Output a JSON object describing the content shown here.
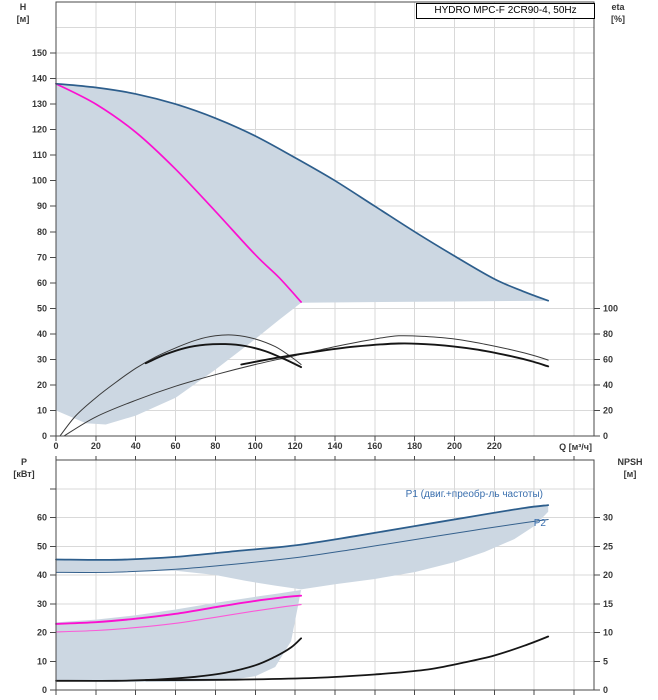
{
  "colors": {
    "envelope_fill": "#ccd7e2",
    "max_curve_blue": "#2d5e8c",
    "thin_blue": "#35618d",
    "magenta_thick": "#fb10d1",
    "magenta_thin": "#fb5ad8",
    "black_thick": "#161616",
    "black_thin": "#3a3a3a",
    "annotation_blue": "#3a6fae",
    "grid": "#d9d9d9",
    "axis": "#4a4a4a"
  },
  "chart_data": [
    {
      "id": "hq_chart",
      "type": "line",
      "title": "HYDRO MPC-F 2CR90-4, 50Hz",
      "x_axis": {
        "label": "Q [м³/ч]",
        "min": 0,
        "max": 270,
        "grid_step": 20,
        "ticks": [
          0,
          20,
          40,
          60,
          80,
          100,
          120,
          140,
          160,
          180,
          200,
          220
        ],
        "show_labels": true
      },
      "y_left": {
        "name": "H",
        "unit": "[м]",
        "min": 0,
        "max": 170,
        "grid_step": 10,
        "ticks": [
          0,
          10,
          20,
          30,
          40,
          50,
          60,
          70,
          80,
          90,
          100,
          110,
          120,
          130,
          140,
          150
        ],
        "tick_label_max": 150
      },
      "y_right": {
        "name": "eta",
        "unit": "[%]",
        "ticks": [
          0,
          20,
          40,
          60,
          80,
          100
        ]
      },
      "right_to_left": 0.5,
      "region_color": "#ccd7e2",
      "regions": [
        {
          "name": "operating-envelope",
          "points": [
            [
              0,
              138
            ],
            [
              20,
              136.5
            ],
            [
              40,
              134
            ],
            [
              60,
              130
            ],
            [
              80,
              124.5
            ],
            [
              100,
              117.5
            ],
            [
              120,
              109
            ],
            [
              140,
              100
            ],
            [
              160,
              90
            ],
            [
              180,
              80
            ],
            [
              200,
              70.5
            ],
            [
              220,
              61.5
            ],
            [
              235,
              56.5
            ],
            [
              247,
              53
            ],
            [
              200,
              52.7
            ],
            [
              150,
              52.4
            ],
            [
              123,
              52.2
            ],
            [
              112,
              45.5
            ],
            [
              100,
              38
            ],
            [
              80,
              26
            ],
            [
              60,
              15
            ],
            [
              40,
              8
            ],
            [
              25,
              4.5
            ],
            [
              15,
              5
            ],
            [
              0,
              10
            ]
          ]
        }
      ],
      "series": [
        {
          "name": "eta-1pump-thin",
          "axis": "right",
          "color": "#3a3a3a",
          "width": 1,
          "points": [
            [
              2,
              0
            ],
            [
              10,
              16
            ],
            [
              20,
              30
            ],
            [
              30,
              42
            ],
            [
              40,
              53
            ],
            [
              50,
              62
            ],
            [
              60,
              69
            ],
            [
              70,
              75
            ],
            [
              80,
              78.5
            ],
            [
              90,
              79
            ],
            [
              100,
              76
            ],
            [
              110,
              70
            ],
            [
              118,
              62
            ],
            [
              123,
              56
            ]
          ]
        },
        {
          "name": "eta-2pumps-thin",
          "axis": "right",
          "color": "#3a3a3a",
          "width": 1,
          "points": [
            [
              4,
              0
            ],
            [
              20,
              15
            ],
            [
              40,
              28
            ],
            [
              60,
              39
            ],
            [
              80,
              48
            ],
            [
              100,
              56
            ],
            [
              120,
              63
            ],
            [
              140,
              70
            ],
            [
              160,
              76
            ],
            [
              172,
              78.5
            ],
            [
              185,
              78
            ],
            [
              200,
              76
            ],
            [
              215,
              72
            ],
            [
              230,
              67
            ],
            [
              240,
              63
            ],
            [
              247,
              59.5
            ]
          ]
        },
        {
          "name": "eta-1pump-thick",
          "axis": "right",
          "color": "#161616",
          "width": 1.9,
          "points": [
            [
              45,
              57
            ],
            [
              55,
              64
            ],
            [
              65,
              69
            ],
            [
              75,
              71.5
            ],
            [
              85,
              72
            ],
            [
              95,
              70.5
            ],
            [
              105,
              66.5
            ],
            [
              115,
              60
            ],
            [
              123,
              54
            ]
          ]
        },
        {
          "name": "eta-2pumps-thick",
          "axis": "right",
          "color": "#161616",
          "width": 1.9,
          "points": [
            [
              93,
              56
            ],
            [
              110,
              61
            ],
            [
              130,
              66
            ],
            [
              150,
              70
            ],
            [
              172,
              72.5
            ],
            [
              190,
              71.5
            ],
            [
              210,
              68
            ],
            [
              230,
              62
            ],
            [
              240,
              58
            ],
            [
              247,
              54.5
            ]
          ]
        },
        {
          "name": "single-pump-max-speed-curve",
          "axis": "left",
          "color": "#fb10d1",
          "width": 1.7,
          "points": [
            [
              0,
              138
            ],
            [
              20,
              130
            ],
            [
              40,
              119
            ],
            [
              60,
              104.5
            ],
            [
              80,
              88
            ],
            [
              100,
              71
            ],
            [
              112,
              62
            ],
            [
              123,
              52.5
            ]
          ]
        },
        {
          "name": "max-speed-curve-2pumps",
          "axis": "left",
          "color": "#2d5e8c",
          "width": 1.7,
          "points": [
            [
              0,
              138
            ],
            [
              20,
              136.5
            ],
            [
              40,
              134
            ],
            [
              60,
              130
            ],
            [
              80,
              124.5
            ],
            [
              100,
              117.5
            ],
            [
              120,
              109
            ],
            [
              140,
              100
            ],
            [
              160,
              90
            ],
            [
              180,
              80
            ],
            [
              200,
              70.5
            ],
            [
              220,
              61.5
            ],
            [
              235,
              56.5
            ],
            [
              247,
              53
            ]
          ]
        }
      ]
    },
    {
      "id": "power_chart",
      "type": "line",
      "x_axis": {
        "label": "",
        "min": 0,
        "max": 270,
        "grid_step": 20,
        "ticks": [
          0,
          20,
          40,
          60,
          80,
          100,
          120,
          140,
          160,
          180,
          200,
          220,
          240,
          260
        ],
        "show_labels": false
      },
      "y_left": {
        "name": "P",
        "unit": "[кВт]",
        "min": 0,
        "max": 80,
        "grid_step": 10,
        "ticks": [
          0,
          10,
          20,
          30,
          40,
          50,
          60,
          70
        ],
        "tick_label_max": 60
      },
      "y_right": {
        "name": "NPSH",
        "unit": "[м]",
        "ticks": [
          0,
          5,
          10,
          15,
          20,
          25,
          30
        ]
      },
      "right_to_left": 2,
      "region_color": "#ccd7e2",
      "annotations": {
        "p1": "P1 (двиг.+преобр-ль частоты)",
        "p2": "P2"
      },
      "regions": [
        {
          "name": "power-envelope-upper",
          "points": [
            [
              0,
              45.4
            ],
            [
              30,
              45.3
            ],
            [
              60,
              46.3
            ],
            [
              90,
              48.3
            ],
            [
              120,
              50.3
            ],
            [
              150,
              53.5
            ],
            [
              180,
              57
            ],
            [
              210,
              60.5
            ],
            [
              235,
              63.3
            ],
            [
              247,
              64.3
            ],
            [
              247,
              62
            ],
            [
              240,
              57
            ],
            [
              230,
              52.5
            ],
            [
              215,
              48
            ],
            [
              200,
              44.5
            ],
            [
              180,
              41
            ],
            [
              160,
              38.6
            ],
            [
              140,
              36.8
            ],
            [
              123,
              35
            ],
            [
              110,
              36.3
            ],
            [
              95,
              38
            ],
            [
              80,
              40
            ],
            [
              60,
              41.5
            ],
            [
              30,
              41.2
            ],
            [
              0,
              40.9
            ]
          ]
        },
        {
          "name": "power-envelope-lower",
          "points": [
            [
              0,
              23.5
            ],
            [
              20,
              24.5
            ],
            [
              40,
              26
            ],
            [
              60,
              28
            ],
            [
              80,
              30.3
            ],
            [
              100,
              32.4
            ],
            [
              112,
              33.6
            ],
            [
              123,
              34.8
            ],
            [
              118,
              17
            ],
            [
              110,
              8
            ],
            [
              100,
              4.8
            ],
            [
              85,
              3.2
            ],
            [
              60,
              2.9
            ],
            [
              40,
              2.8
            ],
            [
              20,
              2.9
            ],
            [
              0,
              3.1
            ]
          ]
        }
      ],
      "series": [
        {
          "name": "p2-curve",
          "axis": "left",
          "color": "#35618d",
          "width": 1,
          "points": [
            [
              0,
              40.9
            ],
            [
              30,
              41
            ],
            [
              60,
              42
            ],
            [
              90,
              43.8
            ],
            [
              120,
              46
            ],
            [
              150,
              49
            ],
            [
              180,
              52.3
            ],
            [
              210,
              55.6
            ],
            [
              235,
              58.2
            ],
            [
              247,
              59.3
            ]
          ]
        },
        {
          "name": "p1-curve",
          "axis": "left",
          "color": "#2d5e8c",
          "width": 1.8,
          "points": [
            [
              0,
              45.4
            ],
            [
              30,
              45.3
            ],
            [
              60,
              46.3
            ],
            [
              90,
              48.3
            ],
            [
              120,
              50.3
            ],
            [
              150,
              53.5
            ],
            [
              180,
              57
            ],
            [
              210,
              60.5
            ],
            [
              235,
              63.3
            ],
            [
              247,
              64.3
            ]
          ]
        },
        {
          "name": "p2-single-pump-curve",
          "axis": "left",
          "color": "#fb5ad8",
          "width": 1.1,
          "points": [
            [
              0,
              20.2
            ],
            [
              20,
              20.7
            ],
            [
              40,
              21.7
            ],
            [
              60,
              23.2
            ],
            [
              80,
              25.3
            ],
            [
              100,
              27.5
            ],
            [
              115,
              29
            ],
            [
              123,
              29.7
            ]
          ]
        },
        {
          "name": "p1-single-pump-curve",
          "axis": "left",
          "color": "#fb10d1",
          "width": 1.9,
          "points": [
            [
              0,
              23
            ],
            [
              20,
              23.6
            ],
            [
              40,
              24.8
            ],
            [
              60,
              26.5
            ],
            [
              80,
              28.8
            ],
            [
              100,
              31
            ],
            [
              115,
              32.3
            ],
            [
              123,
              32.8
            ]
          ]
        },
        {
          "name": "npsh-1pump-curve",
          "axis": "right",
          "color": "#161616",
          "width": 1.8,
          "points": [
            [
              0,
              1.6
            ],
            [
              30,
              1.6
            ],
            [
              50,
              1.8
            ],
            [
              70,
              2.3
            ],
            [
              85,
              3
            ],
            [
              100,
              4.3
            ],
            [
              110,
              5.8
            ],
            [
              118,
              7.4
            ],
            [
              123,
              9
            ]
          ]
        },
        {
          "name": "npsh-2pumps-curve",
          "axis": "right",
          "color": "#161616",
          "width": 1.8,
          "points": [
            [
              45,
              1.7
            ],
            [
              90,
              1.8
            ],
            [
              130,
              2.1
            ],
            [
              160,
              2.7
            ],
            [
              185,
              3.5
            ],
            [
              205,
              4.8
            ],
            [
              220,
              6
            ],
            [
              235,
              7.7
            ],
            [
              247,
              9.3
            ]
          ]
        }
      ]
    }
  ]
}
